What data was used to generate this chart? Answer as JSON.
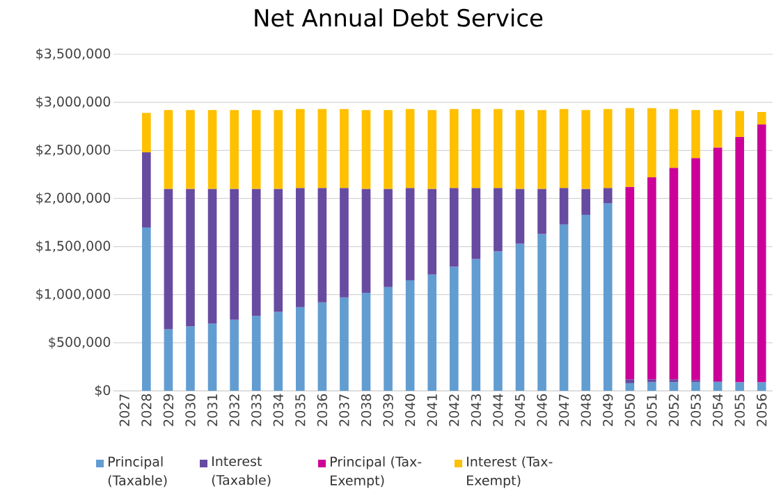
{
  "chart_data": {
    "type": "bar",
    "title": "Net Annual Debt Service",
    "stacked": true,
    "categories": [
      "2027",
      "2028",
      "2029",
      "2030",
      "2031",
      "2032",
      "2033",
      "2034",
      "2035",
      "2036",
      "2037",
      "2038",
      "2039",
      "2040",
      "2041",
      "2042",
      "2043",
      "2044",
      "2045",
      "2046",
      "2047",
      "2048",
      "2049",
      "2050",
      "2051",
      "2052",
      "2053",
      "2054",
      "2055",
      "2056"
    ],
    "series": [
      {
        "name": "Principal (Taxable)",
        "color": "#629dd1",
        "values": [
          null,
          1700000,
          640000,
          670000,
          700000,
          740000,
          780000,
          820000,
          870000,
          920000,
          970000,
          1020000,
          1080000,
          1150000,
          1210000,
          1290000,
          1370000,
          1450000,
          1530000,
          1630000,
          1730000,
          1830000,
          1950000,
          80000,
          90000,
          90000,
          90000,
          90000,
          90000,
          90000
        ]
      },
      {
        "name": "Interest (Taxable)",
        "color": "#674ba0",
        "values": [
          null,
          780000,
          1460000,
          1430000,
          1400000,
          1360000,
          1320000,
          1280000,
          1240000,
          1190000,
          1140000,
          1080000,
          1020000,
          960000,
          890000,
          820000,
          740000,
          660000,
          570000,
          470000,
          380000,
          270000,
          160000,
          40000,
          30000,
          30000,
          20000,
          10000,
          null,
          null
        ]
      },
      {
        "name": "Principal (Tax-Exempt)",
        "color": "#cc0099",
        "values": [
          null,
          null,
          null,
          null,
          null,
          null,
          null,
          null,
          null,
          null,
          null,
          null,
          null,
          null,
          null,
          null,
          null,
          null,
          null,
          null,
          null,
          null,
          null,
          2000000,
          2100000,
          2200000,
          2310000,
          2430000,
          2550000,
          2680000
        ]
      },
      {
        "name": "Interest (Tax-Exempt)",
        "color": "#ffc000",
        "values": [
          null,
          410000,
          820000,
          820000,
          820000,
          820000,
          820000,
          820000,
          820000,
          820000,
          820000,
          820000,
          820000,
          820000,
          820000,
          820000,
          820000,
          820000,
          820000,
          820000,
          820000,
          820000,
          820000,
          820000,
          720000,
          610000,
          500000,
          390000,
          270000,
          130000
        ]
      }
    ],
    "ylim": [
      0,
      3500000
    ],
    "yticks": [
      {
        "value": 0,
        "label": "$0"
      },
      {
        "value": 500000,
        "label": "$500,000"
      },
      {
        "value": 1000000,
        "label": "$1,000,000"
      },
      {
        "value": 1500000,
        "label": "$1,500,000"
      },
      {
        "value": 2000000,
        "label": "$2,000,000"
      },
      {
        "value": 2500000,
        "label": "$2,500,000"
      },
      {
        "value": 3000000,
        "label": "$3,000,000"
      },
      {
        "value": 3500000,
        "label": "$3,500,000"
      }
    ],
    "grid": "y",
    "legend": "bottom"
  }
}
